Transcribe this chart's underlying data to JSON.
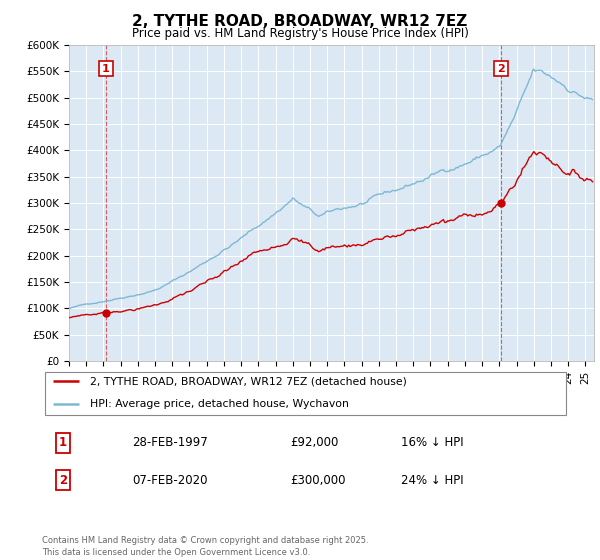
{
  "title": "2, TYTHE ROAD, BROADWAY, WR12 7EZ",
  "subtitle": "Price paid vs. HM Land Registry's House Price Index (HPI)",
  "ylabel_ticks": [
    "£0",
    "£50K",
    "£100K",
    "£150K",
    "£200K",
    "£250K",
    "£300K",
    "£350K",
    "£400K",
    "£450K",
    "£500K",
    "£550K",
    "£600K"
  ],
  "ytick_values": [
    0,
    50000,
    100000,
    150000,
    200000,
    250000,
    300000,
    350000,
    400000,
    450000,
    500000,
    550000,
    600000
  ],
  "hpi_color": "#7eb8d4",
  "price_color": "#cc0000",
  "vline_color": "#cc0000",
  "sale1_year": 1997.15,
  "sale1_price": 92000,
  "sale1_label": "1",
  "sale1_date": "28-FEB-1997",
  "sale1_amount": "£92,000",
  "sale1_hpi": "16% ↓ HPI",
  "sale2_year": 2020.1,
  "sale2_price": 300000,
  "sale2_label": "2",
  "sale2_date": "07-FEB-2020",
  "sale2_amount": "£300,000",
  "sale2_hpi": "24% ↓ HPI",
  "legend_line1": "2, TYTHE ROAD, BROADWAY, WR12 7EZ (detached house)",
  "legend_line2": "HPI: Average price, detached house, Wychavon",
  "footer": "Contains HM Land Registry data © Crown copyright and database right 2025.\nThis data is licensed under the Open Government Licence v3.0.",
  "xmin": 1995,
  "xmax": 2025.5,
  "ymin": 0,
  "ymax": 600000,
  "plot_bg": "#dce9f5"
}
